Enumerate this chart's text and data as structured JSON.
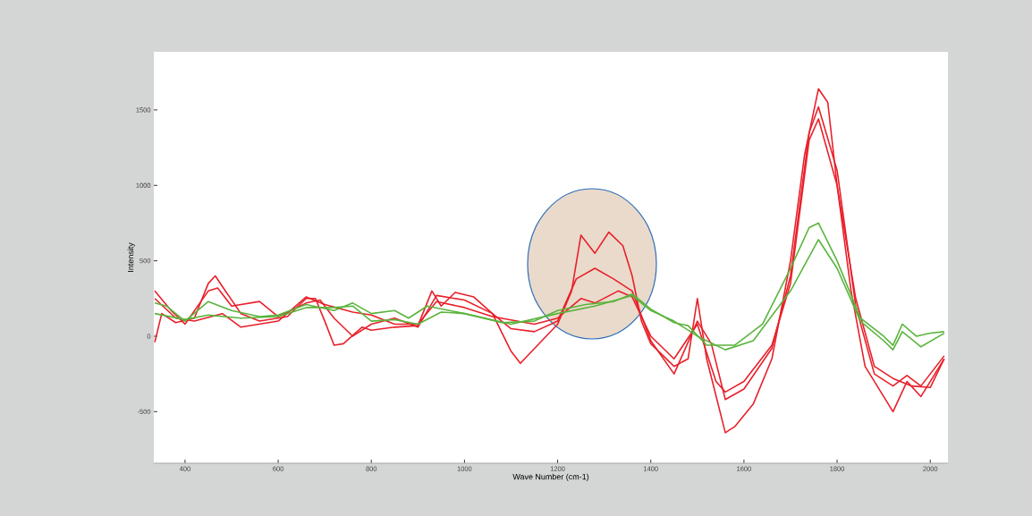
{
  "chart_data": {
    "type": "line",
    "xlabel": "Wave Number (cm-1)",
    "ylabel": "Intensity",
    "x": [
      335,
      350,
      380,
      420,
      450,
      465,
      480,
      520,
      560,
      620,
      660,
      680,
      700,
      720,
      740,
      780,
      800,
      850,
      900,
      930,
      950,
      980,
      1020,
      1060,
      1100,
      1120,
      1160,
      1200,
      1230,
      1250,
      1280,
      1310,
      1340,
      1360,
      1380,
      1400,
      1450,
      1480,
      1500,
      1520,
      1560,
      1580,
      1620,
      1660,
      1700,
      1730,
      1760,
      1780,
      1800,
      1830,
      1860,
      1900,
      1920,
      1950,
      1980,
      2000,
      2030
    ],
    "series": [
      {
        "color": "#e8202a",
        "values": [
          -40,
          150,
          90,
          120,
          350,
          400,
          330,
          150,
          100,
          130,
          250,
          250,
          100,
          -60,
          -50,
          60,
          40,
          60,
          70,
          300,
          200,
          290,
          260,
          150,
          -100,
          -180,
          -50,
          80,
          300,
          670,
          550,
          690,
          600,
          400,
          100,
          -50,
          -200,
          -150,
          250,
          -150,
          -640,
          -600,
          -450,
          -150,
          500,
          1200,
          1640,
          1550,
          1000,
          300,
          -200,
          -400,
          -500,
          -300,
          -400,
          -300,
          -150
        ]
      },
      {
        "color": "#e8202a",
        "x": [
          335,
          370,
          400,
          450,
          470,
          500,
          560,
          600,
          660,
          690,
          720,
          760,
          800,
          850,
          900,
          940,
          1000,
          1060,
          1100,
          1150,
          1200,
          1240,
          1280,
          1320,
          1360,
          1400,
          1450,
          1500,
          1530,
          1560,
          1600,
          1660,
          1700,
          1740,
          1760,
          1800,
          1840,
          1880,
          1920,
          1950,
          1980,
          2030
        ],
        "values": [
          300,
          170,
          80,
          300,
          320,
          200,
          230,
          130,
          220,
          240,
          120,
          0,
          80,
          120,
          60,
          270,
          240,
          150,
          50,
          30,
          100,
          380,
          450,
          380,
          300,
          -30,
          -250,
          100,
          -50,
          -420,
          -350,
          -80,
          400,
          1350,
          1520,
          1100,
          200,
          -250,
          -330,
          -260,
          -330,
          -130
        ]
      },
      {
        "color": "#e8202a",
        "x": [
          335,
          380,
          420,
          480,
          520,
          600,
          660,
          700,
          760,
          800,
          850,
          900,
          940,
          1000,
          1060,
          1150,
          1200,
          1250,
          1280,
          1330,
          1360,
          1400,
          1450,
          1500,
          1540,
          1560,
          1600,
          1660,
          1700,
          1740,
          1760,
          1800,
          1840,
          1880,
          1920,
          1960,
          2000,
          2030
        ],
        "values": [
          250,
          120,
          100,
          150,
          60,
          100,
          260,
          210,
          160,
          140,
          80,
          80,
          230,
          190,
          130,
          80,
          120,
          250,
          220,
          300,
          260,
          0,
          -150,
          80,
          -300,
          -370,
          -300,
          -60,
          350,
          1300,
          1440,
          1000,
          250,
          -200,
          -280,
          -330,
          -340,
          -150
        ]
      },
      {
        "color": "#5ab43c",
        "x": [
          335,
          360,
          400,
          450,
          500,
          560,
          600,
          660,
          720,
          760,
          800,
          850,
          880,
          920,
          1000,
          1080,
          1150,
          1200,
          1260,
          1320,
          1360,
          1400,
          1450,
          1480,
          1520,
          1580,
          1640,
          1700,
          1740,
          1760,
          1800,
          1850,
          1900,
          1920,
          1940,
          1970,
          2000,
          2030
        ],
        "values": [
          220,
          200,
          100,
          230,
          170,
          130,
          140,
          210,
          170,
          220,
          150,
          170,
          120,
          200,
          150,
          90,
          100,
          170,
          210,
          230,
          280,
          180,
          90,
          70,
          -60,
          -60,
          80,
          450,
          720,
          750,
          500,
          120,
          0,
          -60,
          80,
          0,
          20,
          30
        ]
      },
      {
        "color": "#5ab43c",
        "x": [
          335,
          400,
          450,
          520,
          600,
          660,
          720,
          760,
          800,
          850,
          900,
          950,
          1000,
          1100,
          1200,
          1280,
          1360,
          1400,
          1450,
          1500,
          1560,
          1620,
          1700,
          1760,
          1800,
          1850,
          1900,
          1920,
          1940,
          1980,
          2030
        ],
        "values": [
          150,
          110,
          140,
          120,
          130,
          190,
          190,
          200,
          100,
          110,
          80,
          160,
          150,
          80,
          150,
          200,
          270,
          170,
          100,
          0,
          -90,
          -30,
          300,
          640,
          450,
          100,
          -30,
          -90,
          30,
          -70,
          20
        ]
      }
    ],
    "xlim": [
      333,
      2038
    ],
    "ylim": [
      -842,
      1885
    ],
    "xticks": [
      400,
      600,
      800,
      1000,
      1200,
      1400,
      1600,
      1800,
      2000
    ],
    "yticks": [
      -500,
      0,
      500,
      1000,
      1500
    ]
  }
}
